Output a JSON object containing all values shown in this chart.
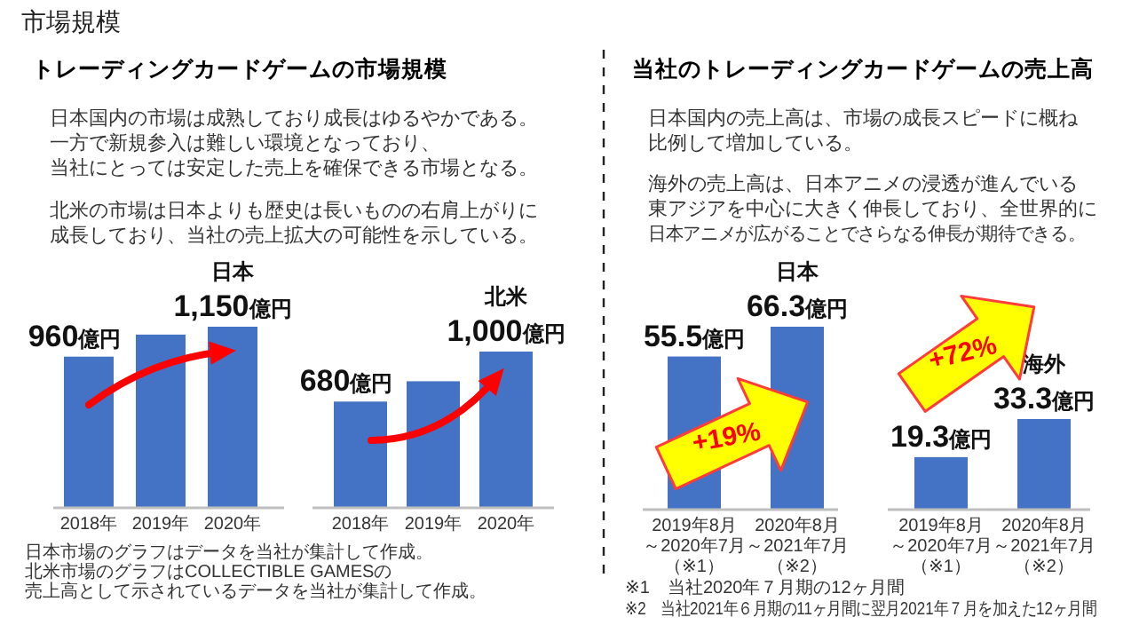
{
  "chart_data": [
    {
      "type": "other",
      "title": "トレーディングカードゲームの市場規模",
      "annotations": [
        "市場規模",
        "日本国内の市場は成熟しており成長はゆるやかである。",
        "一方で新規参入は難しい環境となっており、",
        "当社にとっては安定した売上を確保できる市場となる。",
        "北米の市場は日本よりも歴史は長いものの右肩上がりに",
        "成長しており、当社の売上拡大の可能性を示している。",
        "日本市場のグラフはデータを当社が集計して作成。",
        "北米市場のグラフはCOLLECTIBLE GAMESの",
        "売上高として示されているデータを当社が集計して作成。"
      ]
    },
    {
      "type": "bar",
      "title": "日本",
      "categories": [
        "2018年",
        "2019年",
        "2020年"
      ],
      "values": [
        960,
        1100,
        1150
      ],
      "value_labels": [
        "960億円",
        null,
        "1,150億円"
      ],
      "color": "#4472c4"
    },
    {
      "type": "bar",
      "title": "北米",
      "categories": [
        "2018年",
        "2019年",
        "2020年"
      ],
      "values": [
        680,
        810,
        1000
      ],
      "value_labels": [
        "680億円",
        null,
        "1,000億円"
      ],
      "color": "#4472c4"
    },
    {
      "type": "other",
      "title": "当社のトレーディングカードゲームの売上高",
      "annotations": [
        "日本国内の売上高は、市場の成長スピードに概ね",
        "比例して増加している。",
        "海外の売上高は、日本アニメの浸透が進んでいる",
        "東アジアを中心に大きく伸長しており、全世界的に",
        "日本アニメが広がることでさらなる伸長が期待できる。",
        "※1　当社2020年７月期の12ヶ月間",
        "※2　当社2021年６月期の11ヶ月間に翌月2021年７月を加えた12ヶ月間"
      ]
    },
    {
      "type": "bar",
      "title": "日本",
      "categories": [
        "2019年8月～2020年7月（※1）",
        "2020年8月～2021年7月（※2）"
      ],
      "values": [
        55.5,
        66.3
      ],
      "value_labels": [
        "55.5億円",
        "66.3億円"
      ],
      "color": "#4472c4",
      "annotations": [
        "+19%"
      ]
    },
    {
      "type": "bar",
      "title": "海外",
      "categories": [
        "2019年8月～2020年7月（※1）",
        "2020年8月～2021年7月（※2）"
      ],
      "values": [
        19.3,
        33.3
      ],
      "value_labels": [
        "19.3億円",
        "33.3億円"
      ],
      "color": "#4472c4",
      "annotations": [
        "+72%"
      ]
    }
  ]
}
